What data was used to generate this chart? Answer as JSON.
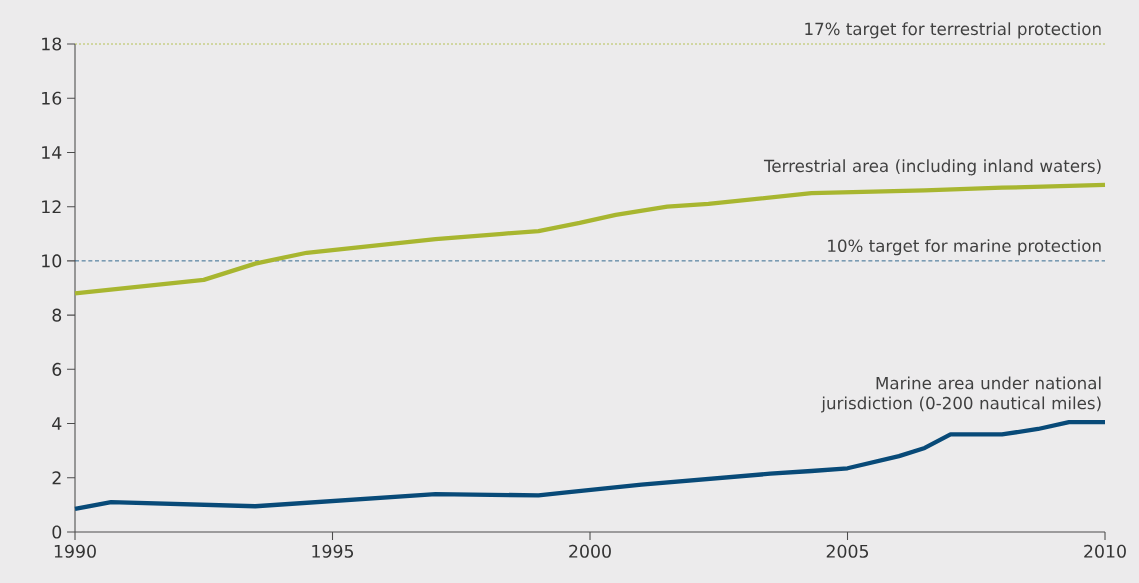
{
  "chart_data": {
    "type": "line",
    "xlim": [
      1990,
      2010
    ],
    "xticks": [
      1990,
      1995,
      2000,
      2005,
      2010
    ],
    "ylim": [
      0,
      18
    ],
    "yticks": [
      0,
      2,
      4,
      6,
      8,
      10,
      12,
      14,
      16,
      18
    ],
    "grid": false,
    "legend": false,
    "marker": "none",
    "line_style": "solid",
    "series": [
      {
        "name": "Terrestrial area (including inland waters)",
        "color": "#a8b630",
        "x": [
          1990,
          1992.5,
          1993.5,
          1994.5,
          1995.5,
          1997,
          1998.3,
          1999,
          1999.8,
          2000.5,
          2001.5,
          2002.3,
          2004.3,
          2006.5,
          2008,
          2010
        ],
        "values": [
          8.8,
          9.3,
          9.9,
          10.3,
          10.5,
          10.8,
          11.0,
          11.1,
          11.4,
          11.7,
          12.0,
          12.1,
          12.5,
          12.6,
          12.7,
          12.8
        ]
      },
      {
        "name": "Marine area under national jurisdiction (0-200 nautical miles)",
        "color": "#084a78",
        "x": [
          1990,
          1990.7,
          1993.5,
          1997,
          1999,
          1999.5,
          2001,
          2003.5,
          2004.3,
          2005,
          2006,
          2006.5,
          2007,
          2008,
          2008.7,
          2009.3,
          2010
        ],
        "values": [
          0.85,
          1.1,
          0.95,
          1.4,
          1.35,
          1.45,
          1.75,
          2.15,
          2.25,
          2.35,
          2.8,
          3.1,
          3.6,
          3.6,
          3.8,
          4.05,
          4.05
        ]
      }
    ],
    "ref_lines": [
      {
        "axis": "y",
        "value": 18,
        "label": "17% target for terrestrial protection",
        "color": "#a8b630",
        "line_style": "dotted"
      },
      {
        "axis": "y",
        "value": 10,
        "label": "10% target for marine protection",
        "color": "#084a78",
        "line_style": "dashed"
      }
    ]
  }
}
